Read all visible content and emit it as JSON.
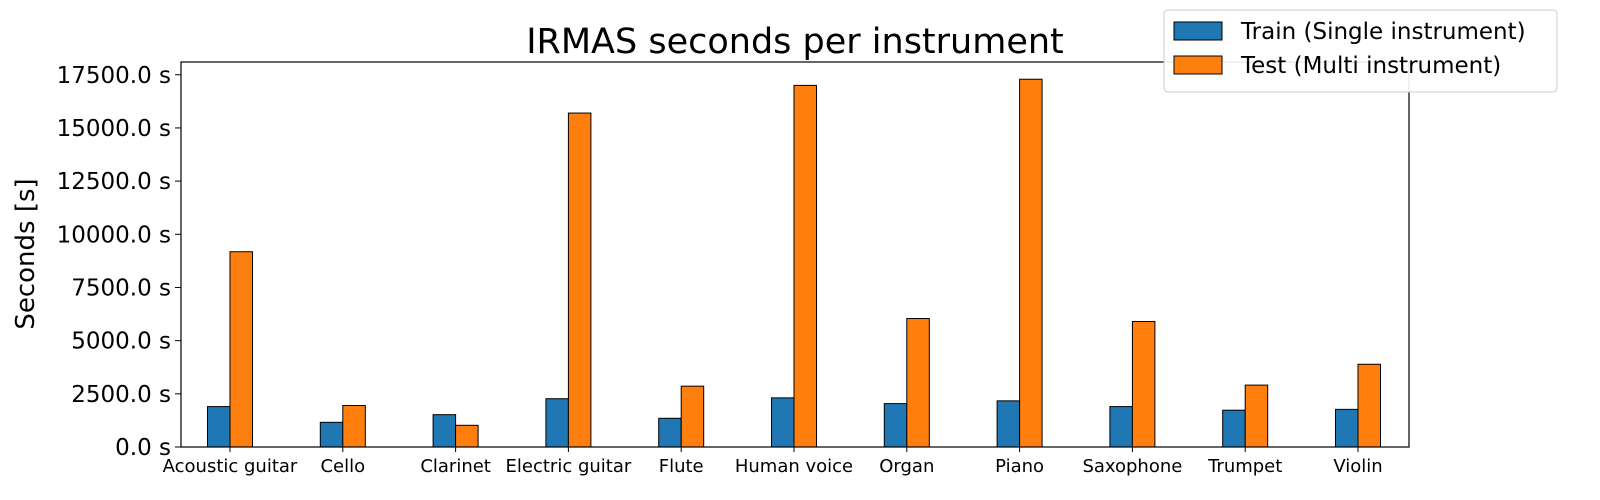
{
  "chart_data": {
    "type": "bar",
    "title": "IRMAS seconds per instrument",
    "xlabel": "",
    "ylabel": "Seconds [s]",
    "ylim": [
      0,
      18100
    ],
    "yticks": [
      0,
      2500,
      5000,
      7500,
      10000,
      12500,
      15000,
      17500
    ],
    "ytick_labels": [
      "0.0 s",
      "2500.0 s",
      "5000.0 s",
      "7500.0 s",
      "10000.0 s",
      "12500.0 s",
      "15000.0 s",
      "17500.0 s"
    ],
    "grid": false,
    "legend_position": "top-right",
    "categories": [
      "Acoustic guitar",
      "Cello",
      "Clarinet",
      "Electric guitar",
      "Flute",
      "Human voice",
      "Organ",
      "Piano",
      "Saxophone",
      "Trumpet",
      "Violin"
    ],
    "series": [
      {
        "name": "Train (Single instrument)",
        "color": "#1f77b4",
        "values": [
          1900,
          1160,
          1520,
          2270,
          1350,
          2310,
          2040,
          2170,
          1900,
          1730,
          1770
        ]
      },
      {
        "name": "Test (Multi instrument)",
        "color": "#ff7f0e",
        "values": [
          9180,
          1950,
          1020,
          15700,
          2860,
          17000,
          6040,
          17290,
          5900,
          2910,
          3890
        ]
      }
    ]
  }
}
